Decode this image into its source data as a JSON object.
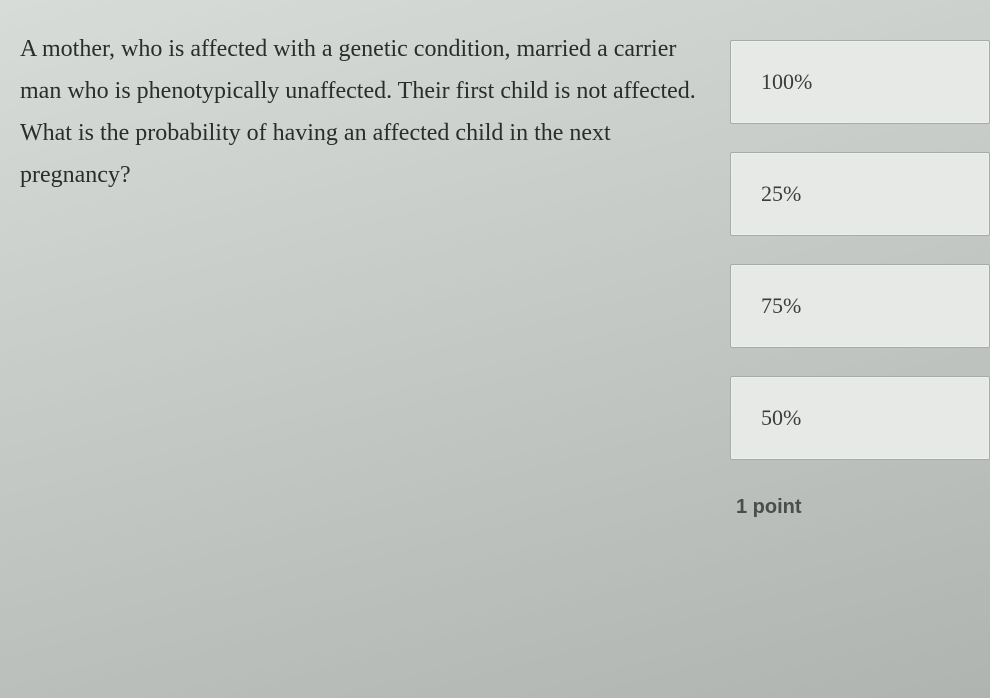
{
  "question": {
    "text": "A mother, who is affected with a genetic condition, married a carrier man who is phenotypically unaffected. Their first child is not affected. What is the probability of having an affected child in the next pregnancy?"
  },
  "options": [
    {
      "label": "100%"
    },
    {
      "label": "25%"
    },
    {
      "label": "75%"
    },
    {
      "label": "50%"
    }
  ],
  "points_label": "1 point",
  "styles": {
    "question_fontsize": 24,
    "question_color": "#2a2e2a",
    "option_bg": "#e6e9e6",
    "option_border": "#a8aca8",
    "option_fontsize": 22,
    "option_color": "#3a3e3a",
    "points_fontsize": 20,
    "points_color": "#4a4e4a",
    "body_bg_start": "#d8dcd8",
    "body_bg_end": "#b0b4b0"
  }
}
